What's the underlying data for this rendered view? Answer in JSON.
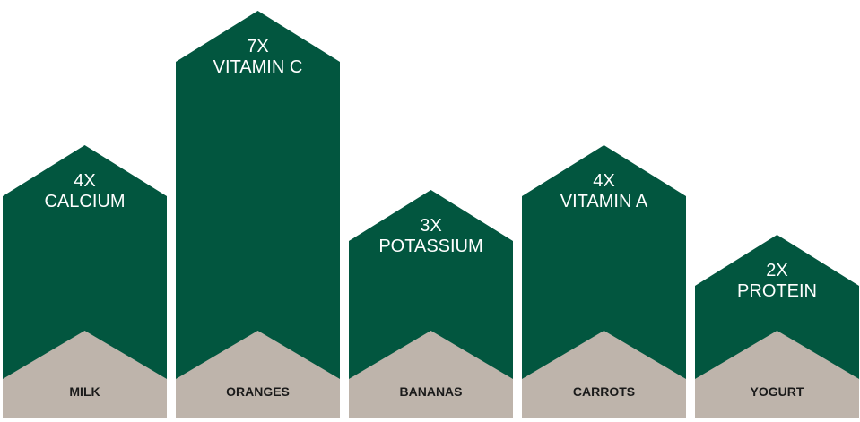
{
  "chart_data": {
    "type": "bar",
    "title": "",
    "xlabel": "",
    "ylabel": "",
    "categories": [
      "MILK",
      "ORANGES",
      "BANANAS",
      "CARROTS",
      "YOGURT"
    ],
    "values": [
      4,
      7,
      3,
      4,
      2
    ],
    "labels": [
      {
        "multiplier": "4X",
        "nutrient": "CALCIUM"
      },
      {
        "multiplier": "7X",
        "nutrient": "VITAMIN C"
      },
      {
        "multiplier": "3X",
        "nutrient": "POTASSIUM"
      },
      {
        "multiplier": "4X",
        "nutrient": "VITAMIN A"
      },
      {
        "multiplier": "2X",
        "nutrient": "PROTEIN"
      }
    ],
    "colors": {
      "bar": "#02563f",
      "base": "#beb4ab",
      "value_text": "#ffffff",
      "category_text": "#1a1a1a"
    },
    "grid": false,
    "legend": "none"
  }
}
